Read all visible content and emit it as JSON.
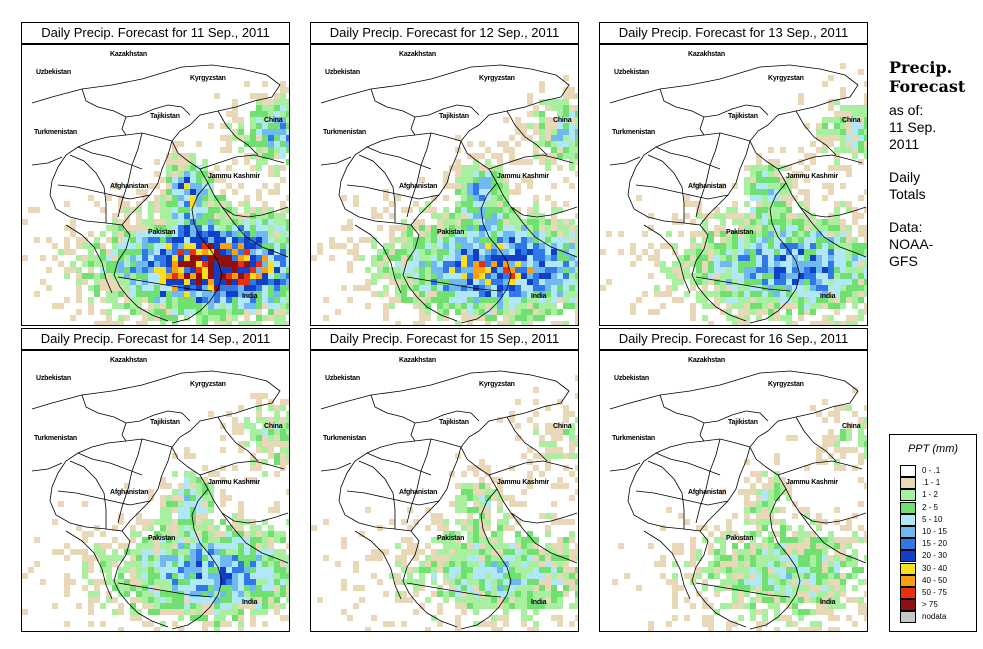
{
  "panels": [
    {
      "title": "Daily Precip. Forecast for  11 Sep., 2011",
      "intensity": 1.0,
      "seed": 11
    },
    {
      "title": "Daily Precip. Forecast for  12 Sep., 2011",
      "intensity": 0.85,
      "seed": 12
    },
    {
      "title": "Daily Precip. Forecast for  13 Sep., 2011",
      "intensity": 0.7,
      "seed": 13
    },
    {
      "title": "Daily Precip. Forecast for  14 Sep., 2011",
      "intensity": 0.65,
      "seed": 14
    },
    {
      "title": "Daily Precip. Forecast for  15 Sep., 2011",
      "intensity": 0.5,
      "seed": 15
    },
    {
      "title": "Daily Precip. Forecast for  16 Sep., 2011",
      "intensity": 0.45,
      "seed": 16
    }
  ],
  "map_labels": {
    "kazakhstan": "Kazakhstan",
    "uzbekistan": "Uzbekistan",
    "kyrgyzstan": "Kyrgyzstan",
    "tajikistan": "Tajikistan",
    "turkmenistan": "Turkmenistan",
    "china": "China",
    "afghanistan": "Afghanistan",
    "jammu_kashmir": "Jammu Kashmir",
    "pakistan": "Pakistan",
    "india": "India"
  },
  "sidebar": {
    "title_line1": "Precip.",
    "title_line2": "Forecast",
    "asof_line1": "as of:",
    "asof_line2": "11 Sep.",
    "asof_line3": "2011",
    "totals_line1": "Daily",
    "totals_line2": "Totals",
    "source_line1": "Data:",
    "source_line2": "NOAA-",
    "source_line3": "GFS"
  },
  "legend": {
    "title": "PPT (mm)",
    "entries": [
      {
        "label": "0 - .1",
        "color": "#ffffff"
      },
      {
        "label": ".1 - 1",
        "color": "#e8d8b8"
      },
      {
        "label": "1 - 2",
        "color": "#a8f0a0"
      },
      {
        "label": "2 - 5",
        "color": "#70e070"
      },
      {
        "label": "5 - 10",
        "color": "#b0e8f8"
      },
      {
        "label": "10 - 15",
        "color": "#70b8f0"
      },
      {
        "label": "15 - 20",
        "color": "#3078e8"
      },
      {
        "label": "20 - 30",
        "color": "#1040c8"
      },
      {
        "label": "30 - 40",
        "color": "#f8e020"
      },
      {
        "label": "40 - 50",
        "color": "#f8a010"
      },
      {
        "label": "50 - 75",
        "color": "#e83010"
      },
      {
        "label": "> 75",
        "color": "#901010"
      },
      {
        "label": "nodata",
        "color": "#c8c8c8"
      }
    ]
  }
}
